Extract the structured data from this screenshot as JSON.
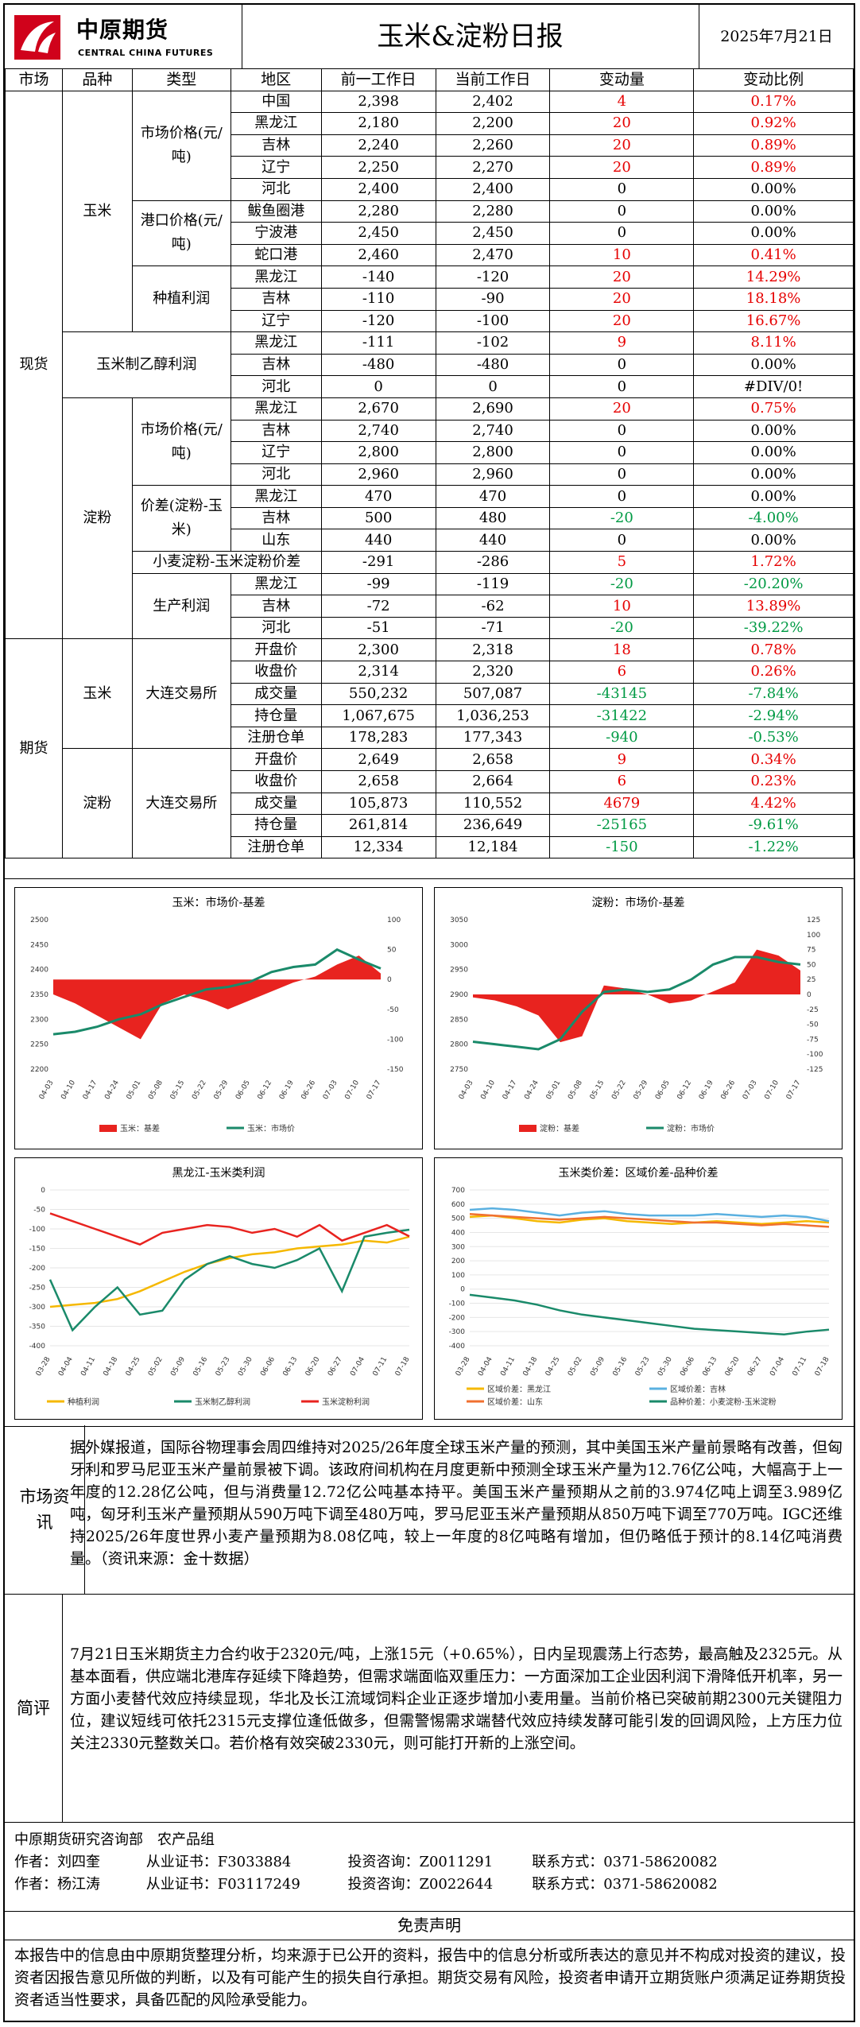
{
  "header": {
    "logo_cn": "中原期货",
    "logo_en": "CENTRAL CHINA FUTURES",
    "title": "玉米&淀粉日报",
    "date": "2025年7月21日"
  },
  "table": {
    "columns": [
      "市场",
      "品种",
      "类型",
      "地区",
      "前一工作日",
      "当前工作日",
      "变动量",
      "变动比例"
    ],
    "spot_label": "现货",
    "futures_label": "期货",
    "corn_label": "玉米",
    "starch_label": "淀粉",
    "ethanol_label": "玉米制乙醇利润",
    "groups": {
      "corn_market": "市场价格(元/吨)",
      "corn_port": "港口价格(元/吨)",
      "corn_plant": "种植利润",
      "starch_market": "市场价格(元/吨)",
      "starch_spread": "价差(淀粉-玉米)",
      "wheat_spread": "小麦淀粉-玉米淀粉价差",
      "starch_profit": "生产利润",
      "exchange": "大连交易所"
    },
    "rows": [
      {
        "region": "中国",
        "prev": "2,398",
        "curr": "2,402",
        "chg": "4",
        "pct": "0.17%",
        "c": "red"
      },
      {
        "region": "黑龙江",
        "prev": "2,180",
        "curr": "2,200",
        "chg": "20",
        "pct": "0.92%",
        "c": "red"
      },
      {
        "region": "吉林",
        "prev": "2,240",
        "curr": "2,260",
        "chg": "20",
        "pct": "0.89%",
        "c": "red"
      },
      {
        "region": "辽宁",
        "prev": "2,250",
        "curr": "2,270",
        "chg": "20",
        "pct": "0.89%",
        "c": "red"
      },
      {
        "region": "河北",
        "prev": "2,400",
        "curr": "2,400",
        "chg": "0",
        "pct": "0.00%",
        "c": ""
      },
      {
        "region": "鲅鱼圈港",
        "prev": "2,280",
        "curr": "2,280",
        "chg": "0",
        "pct": "0.00%",
        "c": ""
      },
      {
        "region": "宁波港",
        "prev": "2,450",
        "curr": "2,450",
        "chg": "0",
        "pct": "0.00%",
        "c": ""
      },
      {
        "region": "蛇口港",
        "prev": "2,460",
        "curr": "2,470",
        "chg": "10",
        "pct": "0.41%",
        "c": "red"
      },
      {
        "region": "黑龙江",
        "prev": "-140",
        "curr": "-120",
        "chg": "20",
        "pct": "14.29%",
        "c": "red"
      },
      {
        "region": "吉林",
        "prev": "-110",
        "curr": "-90",
        "chg": "20",
        "pct": "18.18%",
        "c": "red"
      },
      {
        "region": "辽宁",
        "prev": "-120",
        "curr": "-100",
        "chg": "20",
        "pct": "16.67%",
        "c": "red"
      },
      {
        "region": "黑龙江",
        "prev": "-111",
        "curr": "-102",
        "chg": "9",
        "pct": "8.11%",
        "c": "red"
      },
      {
        "region": "吉林",
        "prev": "-480",
        "curr": "-480",
        "chg": "0",
        "pct": "0.00%",
        "c": ""
      },
      {
        "region": "河北",
        "prev": "0",
        "curr": "0",
        "chg": "0",
        "pct": "#DIV/0!",
        "c": ""
      },
      {
        "region": "黑龙江",
        "prev": "2,670",
        "curr": "2,690",
        "chg": "20",
        "pct": "0.75%",
        "c": "red"
      },
      {
        "region": "吉林",
        "prev": "2,740",
        "curr": "2,740",
        "chg": "0",
        "pct": "0.00%",
        "c": ""
      },
      {
        "region": "辽宁",
        "prev": "2,800",
        "curr": "2,800",
        "chg": "0",
        "pct": "0.00%",
        "c": ""
      },
      {
        "region": "河北",
        "prev": "2,960",
        "curr": "2,960",
        "chg": "0",
        "pct": "0.00%",
        "c": ""
      },
      {
        "region": "黑龙江",
        "prev": "470",
        "curr": "470",
        "chg": "0",
        "pct": "0.00%",
        "c": ""
      },
      {
        "region": "吉林",
        "prev": "500",
        "curr": "480",
        "chg": "-20",
        "pct": "-4.00%",
        "c": "green"
      },
      {
        "region": "山东",
        "prev": "440",
        "curr": "440",
        "chg": "0",
        "pct": "0.00%",
        "c": ""
      },
      {
        "region": "",
        "prev": "-291",
        "curr": "-286",
        "chg": "5",
        "pct": "1.72%",
        "c": "red"
      },
      {
        "region": "黑龙江",
        "prev": "-99",
        "curr": "-119",
        "chg": "-20",
        "pct": "-20.20%",
        "c": "green"
      },
      {
        "region": "吉林",
        "prev": "-72",
        "curr": "-62",
        "chg": "10",
        "pct": "13.89%",
        "c": "red"
      },
      {
        "region": "河北",
        "prev": "-51",
        "curr": "-71",
        "chg": "-20",
        "pct": "-39.22%",
        "c": "green"
      },
      {
        "region": "开盘价",
        "prev": "2,300",
        "curr": "2,318",
        "chg": "18",
        "pct": "0.78%",
        "c": "red"
      },
      {
        "region": "收盘价",
        "prev": "2,314",
        "curr": "2,320",
        "chg": "6",
        "pct": "0.26%",
        "c": "red"
      },
      {
        "region": "成交量",
        "prev": "550,232",
        "curr": "507,087",
        "chg": "-43145",
        "pct": "-7.84%",
        "c": "green"
      },
      {
        "region": "持仓量",
        "prev": "1,067,675",
        "curr": "1,036,253",
        "chg": "-31422",
        "pct": "-2.94%",
        "c": "green"
      },
      {
        "region": "注册仓单",
        "prev": "178,283",
        "curr": "177,343",
        "chg": "-940",
        "pct": "-0.53%",
        "c": "green"
      },
      {
        "region": "开盘价",
        "prev": "2,649",
        "curr": "2,658",
        "chg": "9",
        "pct": "0.34%",
        "c": "red"
      },
      {
        "region": "收盘价",
        "prev": "2,658",
        "curr": "2,664",
        "chg": "6",
        "pct": "0.23%",
        "c": "red"
      },
      {
        "region": "成交量",
        "prev": "105,873",
        "curr": "110,552",
        "chg": "4679",
        "pct": "4.42%",
        "c": "red"
      },
      {
        "region": "持仓量",
        "prev": "261,814",
        "curr": "236,649",
        "chg": "-25165",
        "pct": "-9.61%",
        "c": "green"
      },
      {
        "region": "注册仓单",
        "prev": "12,334",
        "curr": "12,184",
        "chg": "-150",
        "pct": "-1.22%",
        "c": "green"
      }
    ]
  },
  "colors": {
    "red": "#e60000",
    "green": "#009a44",
    "chart_red": "#e8231f",
    "chart_green": "#1a8a6a",
    "yellow": "#f5b800",
    "blue": "#5ab0e0",
    "orange": "#f07030"
  },
  "chart_data": [
    {
      "type": "area",
      "title": "玉米：市场价-基差",
      "x": [
        "04-03",
        "04-10",
        "04-17",
        "04-24",
        "05-01",
        "05-08",
        "05-15",
        "05-22",
        "05-29",
        "06-05",
        "06-12",
        "06-19",
        "06-26",
        "07-03",
        "07-10",
        "07-17"
      ],
      "yleft": [
        2200,
        2250,
        2300,
        2350,
        2400,
        2450,
        2500
      ],
      "yright": [
        100,
        50,
        0,
        -50,
        -100,
        -150
      ],
      "series": [
        {
          "name": "玉米：基差",
          "axis": "right",
          "values": [
            -25,
            -40,
            -60,
            -80,
            -100,
            -40,
            -25,
            -35,
            -50,
            -35,
            -20,
            -5,
            5,
            25,
            40,
            10
          ]
        },
        {
          "name": "玉米：市场价",
          "axis": "left",
          "values": [
            2270,
            2275,
            2285,
            2300,
            2310,
            2330,
            2345,
            2360,
            2365,
            2375,
            2395,
            2405,
            2410,
            2440,
            2420,
            2402
          ]
        }
      ]
    },
    {
      "type": "area",
      "title": "淀粉：市场价-基差",
      "x": [
        "04-03",
        "04-10",
        "04-17",
        "04-24",
        "05-01",
        "05-08",
        "05-15",
        "05-22",
        "05-29",
        "06-05",
        "06-12",
        "06-19",
        "06-26",
        "07-03",
        "07-10",
        "07-17"
      ],
      "yleft": [
        2750,
        2800,
        2850,
        2900,
        2950,
        3000,
        3050
      ],
      "yright": [
        125,
        100,
        75,
        50,
        25,
        0,
        -25,
        -50,
        -75,
        -100,
        -125
      ],
      "series": [
        {
          "name": "淀粉：基差",
          "axis": "right",
          "values": [
            -5,
            -10,
            -20,
            -35,
            -80,
            -70,
            15,
            10,
            0,
            -15,
            -10,
            5,
            20,
            75,
            65,
            40
          ]
        },
        {
          "name": "淀粉：市场价",
          "axis": "left",
          "values": [
            2805,
            2800,
            2795,
            2790,
            2810,
            2865,
            2905,
            2910,
            2905,
            2910,
            2930,
            2960,
            2975,
            2975,
            2965,
            2960
          ]
        }
      ]
    },
    {
      "type": "line",
      "title": "黑龙江-玉米类利润",
      "x": [
        "03-28",
        "04-04",
        "04-11",
        "04-18",
        "04-25",
        "05-02",
        "05-09",
        "05-16",
        "05-23",
        "05-30",
        "06-06",
        "06-13",
        "06-20",
        "06-27",
        "07-04",
        "07-11",
        "07-18"
      ],
      "ylim": [
        -400,
        0
      ],
      "series": [
        {
          "name": "种植利润",
          "values": [
            -300,
            -295,
            -290,
            -280,
            -260,
            -235,
            -210,
            -190,
            -175,
            -165,
            -160,
            -150,
            -145,
            -140,
            -130,
            -135,
            -120
          ]
        },
        {
          "name": "玉米制乙醇利润",
          "values": [
            -230,
            -360,
            -300,
            -250,
            -320,
            -310,
            -230,
            -190,
            -170,
            -190,
            -200,
            -180,
            -150,
            -260,
            -120,
            -110,
            -102
          ]
        },
        {
          "name": "玉米淀粉利润",
          "values": [
            -60,
            -80,
            -100,
            -120,
            -140,
            -110,
            -100,
            -90,
            -95,
            -110,
            -100,
            -120,
            -90,
            -130,
            -110,
            -90,
            -119
          ]
        }
      ]
    },
    {
      "type": "line",
      "title": "玉米类价差：区域价差-品种价差",
      "x": [
        "03-28",
        "04-04",
        "04-11",
        "04-18",
        "04-25",
        "05-02",
        "05-09",
        "05-16",
        "05-23",
        "05-30",
        "06-06",
        "06-13",
        "06-20",
        "06-27",
        "07-04",
        "07-11",
        "07-18"
      ],
      "ylim": [
        -400,
        700
      ],
      "series": [
        {
          "name": "区域价差：黑龙江",
          "values": [
            510,
            520,
            500,
            480,
            470,
            490,
            500,
            480,
            470,
            460,
            470,
            480,
            470,
            460,
            470,
            480,
            470
          ]
        },
        {
          "name": "区域价差：吉林",
          "values": [
            560,
            570,
            560,
            540,
            520,
            540,
            550,
            530,
            520,
            520,
            520,
            530,
            520,
            510,
            520,
            510,
            480
          ]
        },
        {
          "name": "区域价差：山东",
          "values": [
            530,
            520,
            510,
            500,
            490,
            500,
            510,
            500,
            490,
            480,
            470,
            470,
            460,
            450,
            460,
            450,
            440
          ]
        },
        {
          "name": "品种价差：小麦淀粉-玉米淀粉",
          "values": [
            -40,
            -60,
            -80,
            -110,
            -150,
            -180,
            -200,
            -220,
            -240,
            -260,
            -280,
            -290,
            -300,
            -310,
            -320,
            -300,
            -286
          ]
        }
      ]
    }
  ],
  "market_info": {
    "label": "市场资讯",
    "text": "据外媒报道，国际谷物理事会周四维持对2025/26年度全球玉米产量的预测，其中美国玉米产量前景略有改善，但匈牙利和罗马尼亚玉米产量前景被下调。该政府间机构在月度更新中预测全球玉米产量为12.76亿公吨，大幅高于上一年度的12.28亿公吨，但与消费量12.72亿公吨基本持平。美国玉米产量预期从之前的3.974亿吨上调至3.989亿吨，匈牙利玉米产量预期从590万吨下调至480万吨，罗马尼亚玉米产量预期从850万吨下调至770万吨。IGC还维持2025/26年度世界小麦产量预期为8.08亿吨，较上一年度的8亿吨略有增加，但仍略低于预计的8.14亿吨消费量。（资讯来源：金十数据）"
  },
  "comment": {
    "label": "简评",
    "text": "7月21日玉米期货主力合约收于2320元/吨，上涨15元（+0.65%），日内呈现震荡上行态势，最高触及2325元。从基本面看，供应端北港库存延续下降趋势，但需求端面临双重压力：一方面深加工企业因利润下滑降低开机率，另一方面小麦替代效应持续显现，华北及长江流域饲料企业正逐步增加小麦用量。当前价格已突破前期2300元关键阻力位，建议短线可依托2315元支撑位逢低做多，但需警惕需求端替代效应持续发酵可能引发的回调风险，上方压力位关注2330元整数关口。若价格有效突破2330元，则可能打开新的上涨空间。"
  },
  "footer": {
    "dept": "中原期货研究咨询部　农产品组",
    "authors": [
      {
        "name": "作者：刘四奎",
        "cert": "从业证书：F3033884",
        "inv": "投资咨询：Z0011291",
        "contact": "联系方式：0371-58620082"
      },
      {
        "name": "作者：杨江涛",
        "cert": "从业证书：F03117249",
        "inv": "投资咨询：Z0022644",
        "contact": "联系方式：0371-58620082"
      }
    ]
  },
  "disclaimer": {
    "title": "免责声明",
    "text": "本报告中的信息由中原期货整理分析，均来源于已公开的资料，报告中的信息分析或所表达的意见并不构成对投资的建议，投资者因报告意见所做的判断，以及有可能产生的损失自行承担。期货交易有风险，投资者申请开立期货账户须满足证券期货投资者适当性要求，具备匹配的风险承受能力。"
  }
}
